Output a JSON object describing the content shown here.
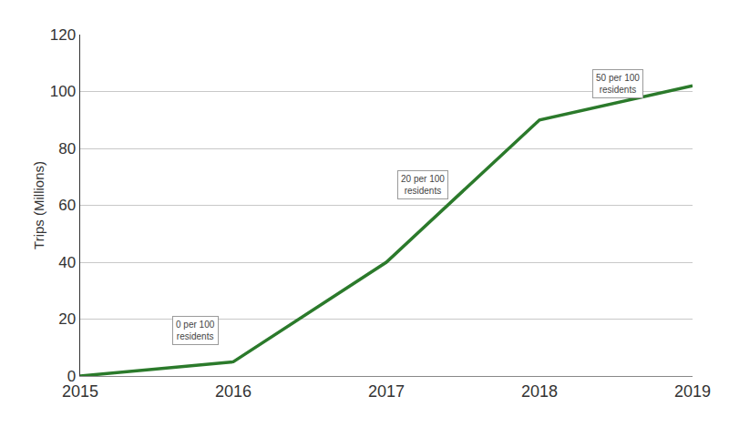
{
  "chart_data": {
    "type": "line",
    "y_label": "Trips (Millions)",
    "categories": [
      "2015",
      "2016",
      "2017",
      "2018",
      "2019"
    ],
    "values": [
      0,
      5,
      40,
      90,
      102
    ],
    "color": "#2b7a2b",
    "ylim": [
      0,
      120
    ],
    "yticks": [
      0,
      20,
      40,
      60,
      80,
      100,
      120
    ],
    "grid": true,
    "annotations": [
      {
        "text": "0 per 100 residents"
      },
      {
        "text": "20 per 100 residents"
      },
      {
        "text": "50 per 100 residents"
      }
    ]
  }
}
